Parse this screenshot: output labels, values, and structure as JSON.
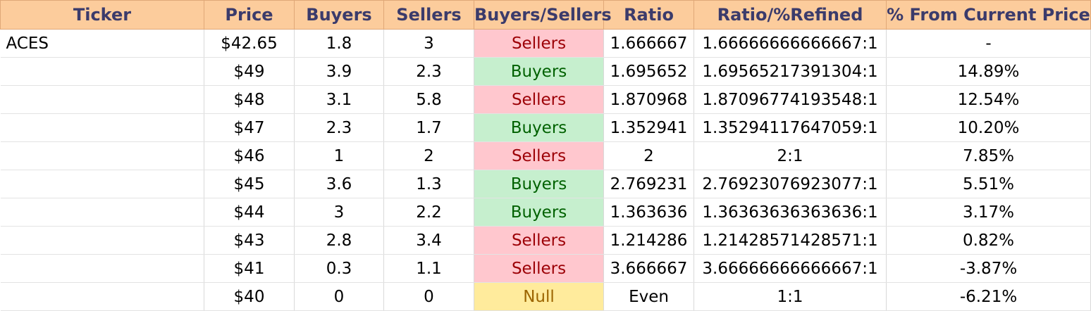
{
  "header": {
    "ticker": "Ticker",
    "price": "Price",
    "buyers": "Buyers",
    "sellers": "Sellers",
    "buyers_sellers": "Buyers/Sellers",
    "ratio": "Ratio",
    "ratio_refined": "Ratio/%Refined",
    "pct_from_current": "% From Current Price"
  },
  "rows": [
    {
      "ticker": "ACES",
      "price": "$42.65",
      "buyers": "1.8",
      "sellers": "3",
      "side": "Sellers",
      "ratio": "1.666667",
      "refined": "1.66666666666667:1",
      "pct": "-"
    },
    {
      "ticker": "",
      "price": "$49",
      "buyers": "3.9",
      "sellers": "2.3",
      "side": "Buyers",
      "ratio": "1.695652",
      "refined": "1.69565217391304:1",
      "pct": "14.89%"
    },
    {
      "ticker": "",
      "price": "$48",
      "buyers": "3.1",
      "sellers": "5.8",
      "side": "Sellers",
      "ratio": "1.870968",
      "refined": "1.87096774193548:1",
      "pct": "12.54%"
    },
    {
      "ticker": "",
      "price": "$47",
      "buyers": "2.3",
      "sellers": "1.7",
      "side": "Buyers",
      "ratio": "1.352941",
      "refined": "1.35294117647059:1",
      "pct": "10.20%"
    },
    {
      "ticker": "",
      "price": "$46",
      "buyers": "1",
      "sellers": "2",
      "side": "Sellers",
      "ratio": "2",
      "refined": "2:1",
      "pct": "7.85%"
    },
    {
      "ticker": "",
      "price": "$45",
      "buyers": "3.6",
      "sellers": "1.3",
      "side": "Buyers",
      "ratio": "2.769231",
      "refined": "2.76923076923077:1",
      "pct": "5.51%"
    },
    {
      "ticker": "",
      "price": "$44",
      "buyers": "3",
      "sellers": "2.2",
      "side": "Buyers",
      "ratio": "1.363636",
      "refined": "1.36363636363636:1",
      "pct": "3.17%"
    },
    {
      "ticker": "",
      "price": "$43",
      "buyers": "2.8",
      "sellers": "3.4",
      "side": "Sellers",
      "ratio": "1.214286",
      "refined": "1.21428571428571:1",
      "pct": "0.82%"
    },
    {
      "ticker": "",
      "price": "$41",
      "buyers": "0.3",
      "sellers": "1.1",
      "side": "Sellers",
      "ratio": "3.666667",
      "refined": "3.66666666666667:1",
      "pct": "-3.87%"
    },
    {
      "ticker": "",
      "price": "$40",
      "buyers": "0",
      "sellers": "0",
      "side": "Null",
      "ratio": "Even",
      "refined": "1:1",
      "pct": "-6.21%"
    }
  ],
  "colors": {
    "header_bg": "#fccc9c",
    "header_text": "#3b3b6b",
    "sellers_bg": "#ffc7ce",
    "sellers_text": "#9c0006",
    "buyers_bg": "#c6efce",
    "buyers_text": "#006100",
    "null_bg": "#ffeb9c",
    "null_text": "#9c6500"
  }
}
